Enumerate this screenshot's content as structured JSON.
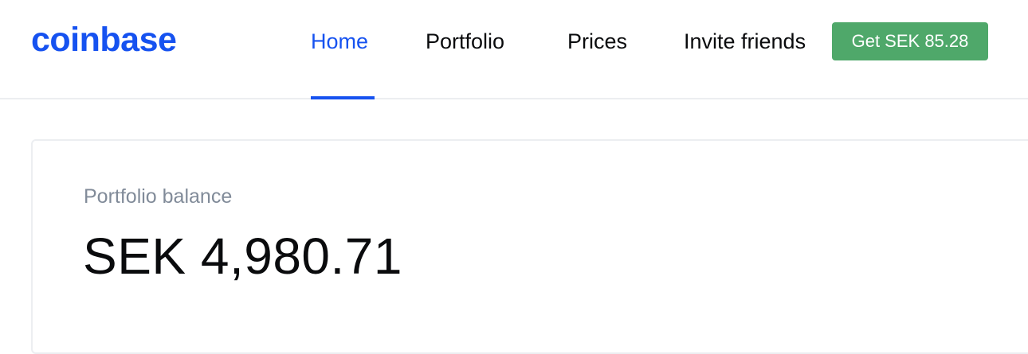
{
  "header": {
    "logo_text": "coinbase",
    "nav": {
      "home": "Home",
      "portfolio": "Portfolio",
      "prices": "Prices",
      "invite": "Invite friends"
    },
    "active_tab": "Home",
    "reward_button_label": "Get SEK 85.28"
  },
  "portfolio": {
    "balance_label": "Portfolio balance",
    "balance_value": "SEK 4,980.71"
  },
  "colors": {
    "brand_blue": "#1652f0",
    "reward_green": "#4fa86a",
    "label_gray": "#818b99",
    "text_dark": "#0a0b0d",
    "border": "#eceef1"
  }
}
